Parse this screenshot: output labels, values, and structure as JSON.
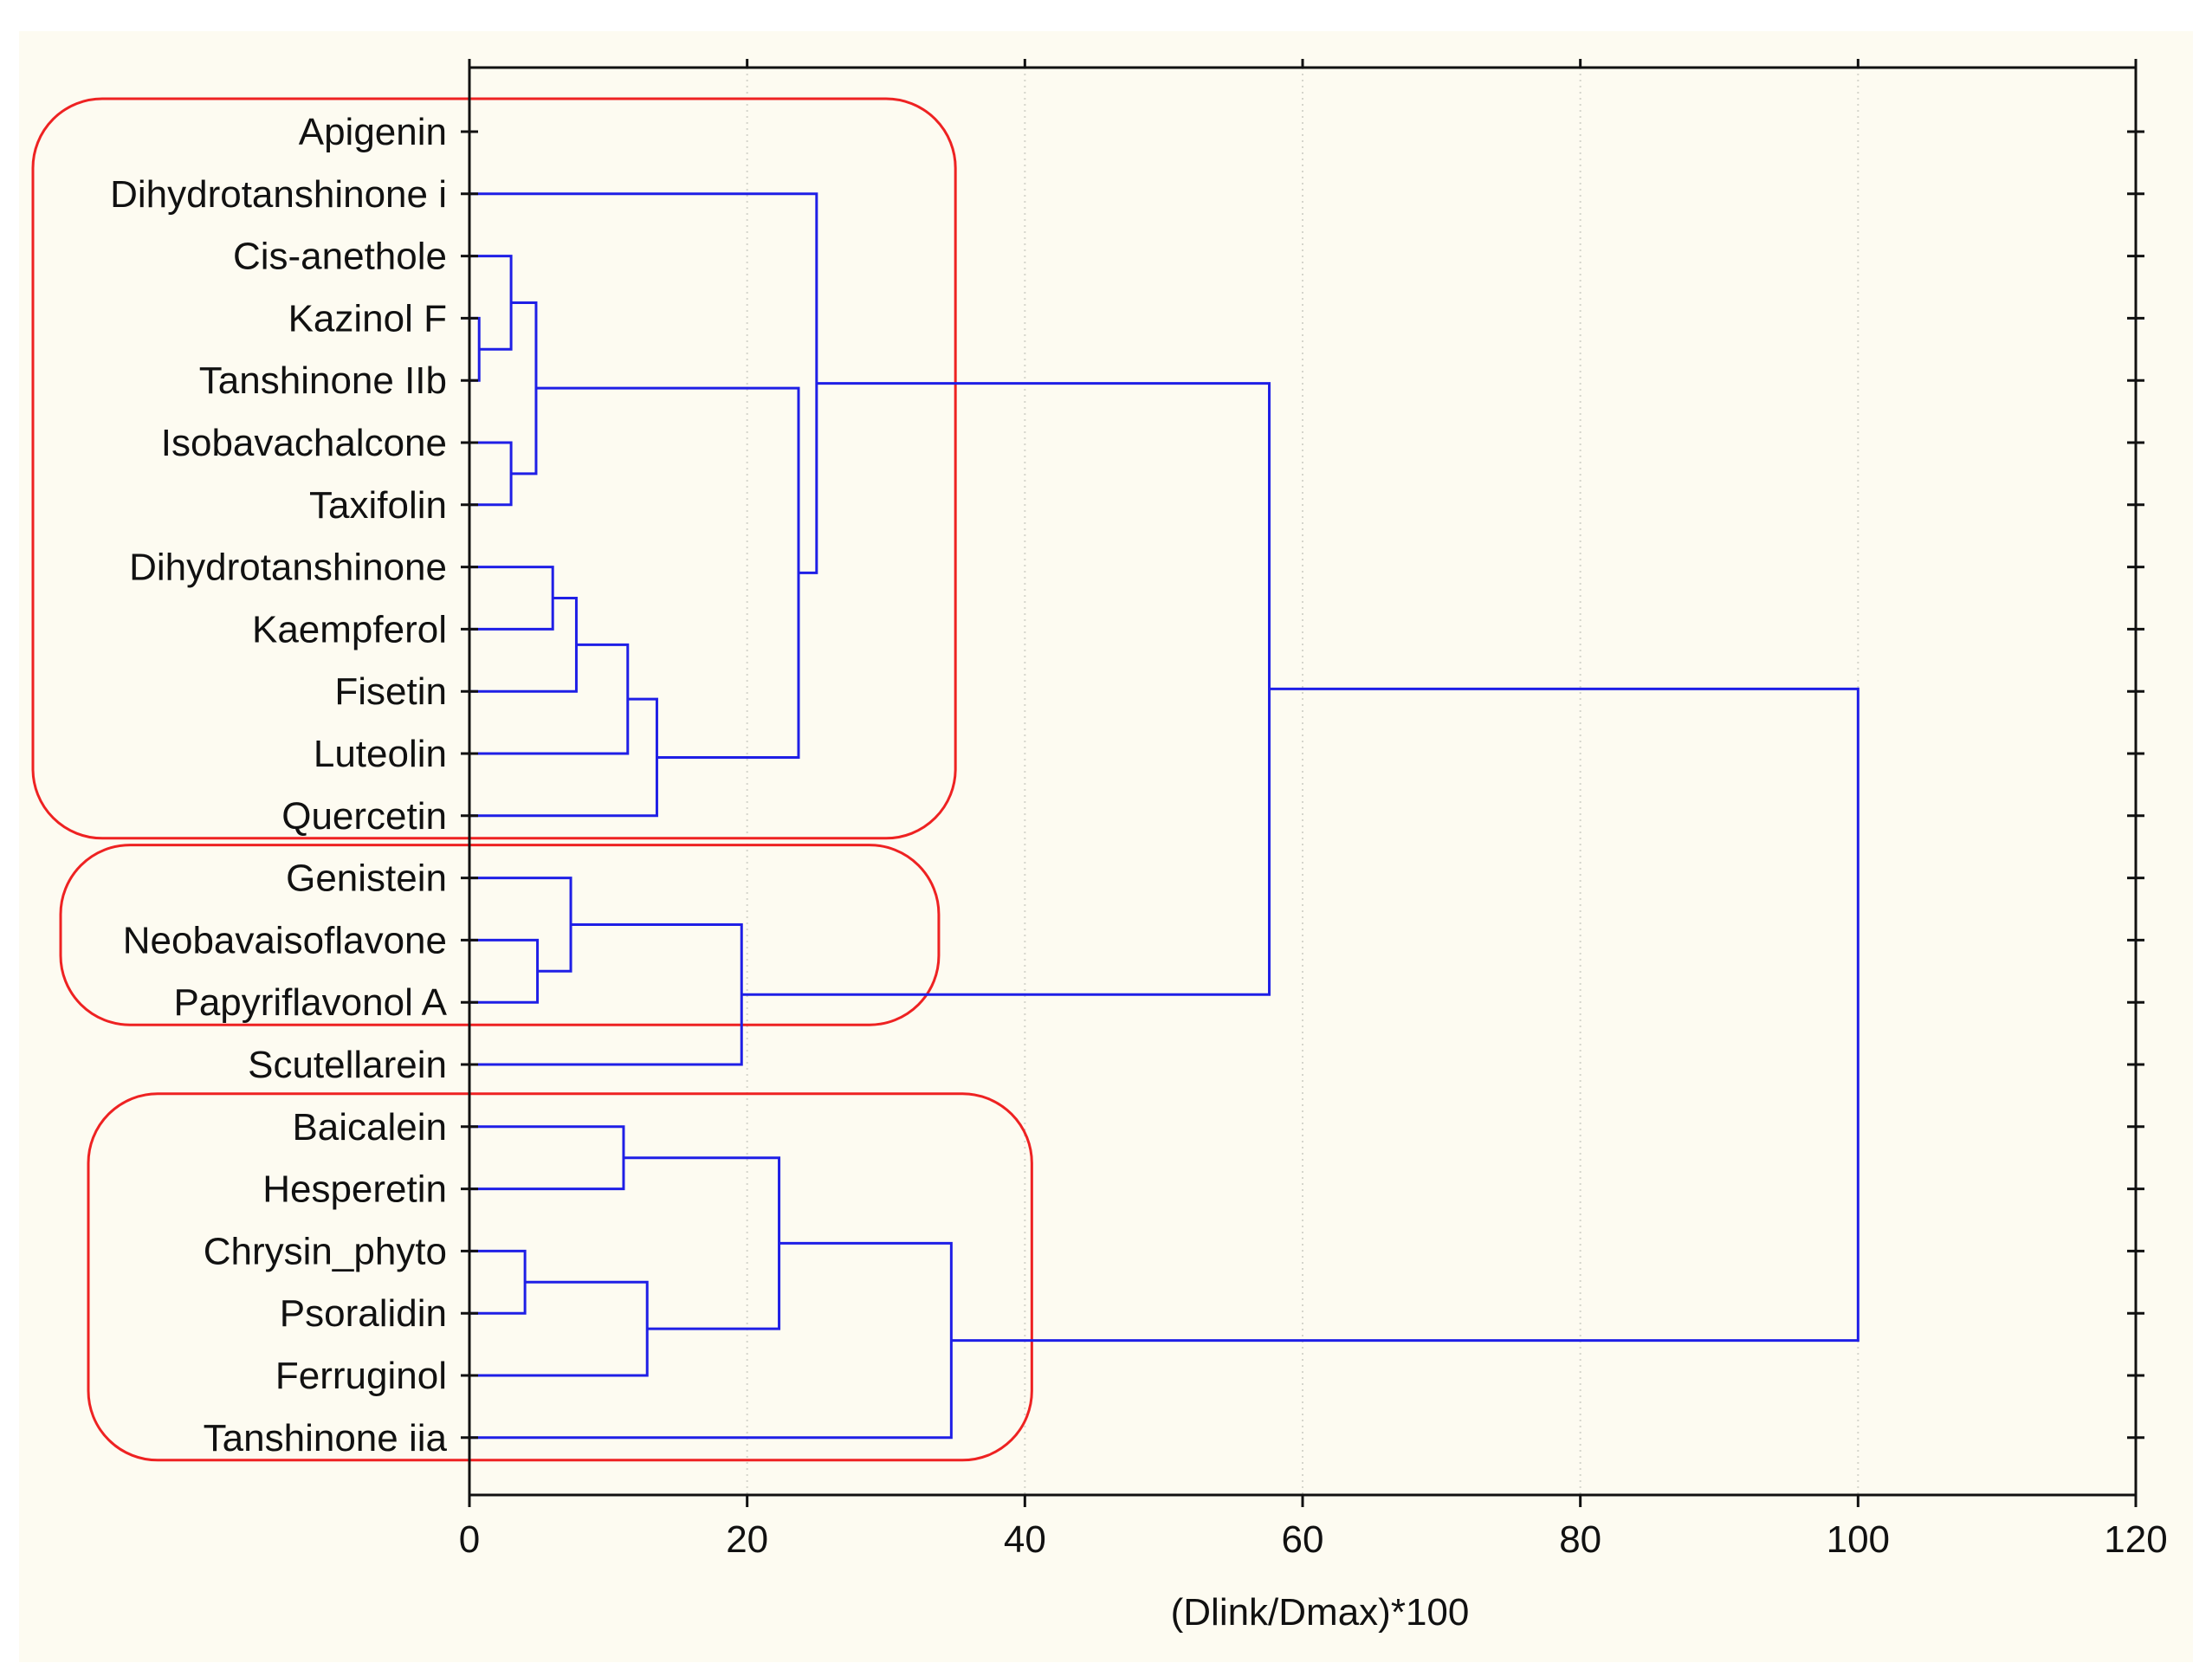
{
  "chart_data": {
    "type": "dendrogram",
    "orientation": "horizontal",
    "xlabel": "(Dlink/Dmax)*100",
    "xlim": [
      0,
      120
    ],
    "xticks": [
      0,
      20,
      40,
      60,
      80,
      100,
      120
    ],
    "grid": "vertical dotted",
    "line_color": "#1f1fe6",
    "cluster_box_color": "#ee2222",
    "leaves": [
      "Apigenin",
      "Dihydrotanshinone i",
      "Cis-anethole",
      "Kazinol F",
      "Tanshinone IIb",
      "Isobavachalcone",
      "Taxifolin",
      "Dihydrotanshinone",
      "Kaempferol",
      "Fisetin",
      "Luteolin",
      "Quercetin",
      "Genistein",
      "Neobavaisoflavone",
      "Papyriflavonol A",
      "Scutellarein",
      "Baicalein",
      "Hesperetin",
      "Chrysin_phyto",
      "Psoralidin",
      "Ferruginol",
      "Tanshinone iia"
    ],
    "merges": [
      {
        "id": "m1",
        "a": "Kazinol F",
        "b": "Tanshinone IIb",
        "height": 0.7
      },
      {
        "id": "m2",
        "a": "Cis-anethole",
        "b": "m1",
        "height": 3.0
      },
      {
        "id": "m3",
        "a": "Isobavachalcone",
        "b": "Taxifolin",
        "height": 3.0
      },
      {
        "id": "m4",
        "a": "m2",
        "b": "m3",
        "height": 4.8
      },
      {
        "id": "m5",
        "a": "Dihydrotanshinone",
        "b": "Kaempferol",
        "height": 6.0
      },
      {
        "id": "m6",
        "a": "m5",
        "b": "Fisetin",
        "height": 7.7
      },
      {
        "id": "m7",
        "a": "m6",
        "b": "Luteolin",
        "height": 11.4
      },
      {
        "id": "m8",
        "a": "m7",
        "b": "Quercetin",
        "height": 13.5
      },
      {
        "id": "m9",
        "a": "m4",
        "b": "m8",
        "height": 23.7
      },
      {
        "id": "m10",
        "a": "Dihydrotanshinone i",
        "b": "m9",
        "height": 25.0
      },
      {
        "id": "m11",
        "a": "Neobavaisoflavone",
        "b": "Papyriflavonol A",
        "height": 4.9
      },
      {
        "id": "m12",
        "a": "Genistein",
        "b": "m11",
        "height": 7.3
      },
      {
        "id": "m13",
        "a": "m12",
        "b": "Scutellarein",
        "height": 19.6
      },
      {
        "id": "m14",
        "a": "m10",
        "b": "m13",
        "height": 57.6
      },
      {
        "id": "m15",
        "a": "Baicalein",
        "b": "Hesperetin",
        "height": 11.1
      },
      {
        "id": "m16",
        "a": "Chrysin_phyto",
        "b": "Psoralidin",
        "height": 4.0
      },
      {
        "id": "m17",
        "a": "m16",
        "b": "Ferruginol",
        "height": 12.8
      },
      {
        "id": "m18",
        "a": "m15",
        "b": "m17",
        "height": 22.3
      },
      {
        "id": "m19",
        "a": "m18",
        "b": "Tanshinone iia",
        "height": 34.7
      },
      {
        "id": "m20",
        "a": "m14",
        "b": "m19",
        "height": 100.0
      }
    ],
    "highlight_groups": [
      {
        "name": "group-1",
        "first_leaf": "Apigenin",
        "last_leaf": "Quercetin",
        "x_reach": 35.0
      },
      {
        "name": "group-2",
        "first_leaf": "Genistein",
        "last_leaf": "Papyriflavonol A",
        "x_reach": 33.8
      },
      {
        "name": "group-3",
        "first_leaf": "Baicalein",
        "last_leaf": "Tanshinone iia",
        "x_reach": 40.5
      }
    ]
  }
}
